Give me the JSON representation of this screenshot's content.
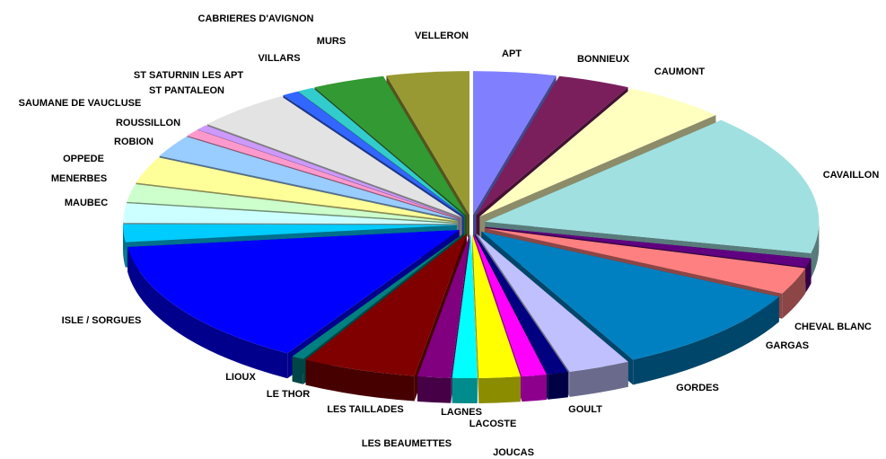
{
  "chart_data": {
    "type": "pie",
    "categories": [
      "APT",
      "BONNIEUX",
      "CAUMONT",
      "CAVAILLON",
      "CHEVAL BLANC",
      "GARGAS",
      "GORDES",
      "GOULT",
      "JOUCAS",
      "LACOSTE",
      "LAGNES",
      "LES BEAUMETTES",
      "LES TAILLADES",
      "LE THOR",
      "LIOUX",
      "ISLE / SORGUES",
      "MAUBEC",
      "MENERBES",
      "OPPEDE",
      "ROBION",
      "ROUSSILLON",
      "SAUMANE DE VAUCLUSE",
      "ST PANTALEON",
      "ST SATURNIN  LES APT",
      "VILLARS",
      "MURS",
      "CABRIERES D'AVIGNON",
      "VELLERON"
    ],
    "values": [
      4,
      3.5,
      5,
      16,
      1,
      3,
      10,
      3,
      1,
      1.2,
      2,
      1.2,
      1.6,
      5.5,
      0.6,
      14.5,
      2,
      2.2,
      2,
      3,
      2.5,
      0.8,
      0.6,
      4.7,
      0.8,
      0.8,
      3.5,
      4
    ],
    "colors": [
      "#8080ff",
      "#7a1f5c",
      "#ffffc0",
      "#a0e0e0",
      "#600080",
      "#ff8080",
      "#0080c0",
      "#c0c0ff",
      "#000080",
      "#ff00ff",
      "#ffff00",
      "#00ffff",
      "#800080",
      "#800000",
      "#008080",
      "#0000ff",
      "#00ccff",
      "#ccffff",
      "#ccffcc",
      "#ffff99",
      "#99ccff",
      "#ff99cc",
      "#cc99ff",
      "#e3e3e3",
      "#3366ff",
      "#33cccc",
      "#339933",
      "#999933"
    ]
  }
}
